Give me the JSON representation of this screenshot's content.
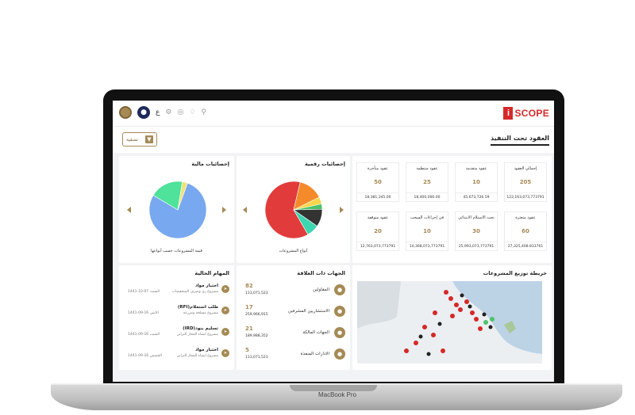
{
  "device": {
    "brand": "MacBook Pro"
  },
  "header": {
    "logo_i": "i",
    "logo_rest": "SCOPE",
    "lang": "ع",
    "page_title": "العقود تحت التنفيذ",
    "filter_label": "تصفية"
  },
  "contracts": {
    "title": "",
    "cards": [
      {
        "label": "إجمالي العقود",
        "value": "205",
        "amount": "122,163,073,773791"
      },
      {
        "label": "عقود متقدمة",
        "value": "10",
        "amount": "45,673,726.59"
      },
      {
        "label": "عقود منتظمة",
        "value": "25",
        "amount": "18,400,000.00"
      },
      {
        "label": "عقود متأخرة",
        "value": "50",
        "amount": "18,381,345.00"
      },
      {
        "label": "عقود متعثرة",
        "value": "60",
        "amount": "27,325,408.833761"
      },
      {
        "label": "تحت الاستلام الابتدائي",
        "value": "30",
        "amount": "25,993,073,773791"
      },
      {
        "label": "في إجراءات السحب",
        "value": "10",
        "amount": "14,368,073,773791"
      },
      {
        "label": "عقود متوقفة",
        "value": "20",
        "amount": "12,763,073,773791"
      }
    ]
  },
  "numeric_stats": {
    "title": "إحصائيات رقمية",
    "caption": "أنواع المشروعات",
    "pie": [
      {
        "value": 62,
        "color": "#e23b3b"
      },
      {
        "value": 14,
        "color": "#f48a2a"
      },
      {
        "value": 4,
        "color": "#f7d54a"
      },
      {
        "value": 3,
        "color": "#4cc26b"
      },
      {
        "value": 10,
        "color": "#333333"
      },
      {
        "value": 7,
        "color": "#3dd6b0"
      }
    ]
  },
  "financial_stats": {
    "title": "إحصائيات مالية",
    "caption": "قيمة المشروعات حسب أنواعها",
    "pie": [
      {
        "value": 78,
        "color": "#78a8ef"
      },
      {
        "value": 19,
        "color": "#4ee29a"
      },
      {
        "value": 3,
        "color": "#f0e27a"
      }
    ]
  },
  "map_panel": {
    "title": "خريطة توزيع المشروعات"
  },
  "stakeholders": {
    "title": "الجهات ذات العلاقة",
    "rows": [
      {
        "label": "المقاولين",
        "count": "82",
        "amount": "113,071,523"
      },
      {
        "label": "الاستشاريين المشرفين",
        "count": "17",
        "amount": "259,966,915"
      },
      {
        "label": "الجهات المالكة",
        "count": "21",
        "amount": "189,988,352"
      },
      {
        "label": "الادارات المنفذة",
        "count": "5",
        "amount": "113,071,523"
      }
    ]
  },
  "tasks": {
    "title": "المهام الحالية",
    "rows": [
      {
        "title": "اختبار مواد",
        "sub": "مشروع ري وصرف المنخفضات",
        "date": "السبت 07-10-1441"
      },
      {
        "title": "(RFI)طلب استعلام",
        "sub": "مشروع مسلخة ومزرعة",
        "date": "الاثنين 16-09-1441"
      },
      {
        "title": "(IRD)تسليم بنود",
        "sub": "مشروع انشاء المجاز الترابي",
        "date": "السبت 16-09-1441"
      },
      {
        "title": "اختبار مواد",
        "sub": "مشروع انشاء المجاز الترابي",
        "date": "الخميس 16-09-1441"
      }
    ]
  }
}
